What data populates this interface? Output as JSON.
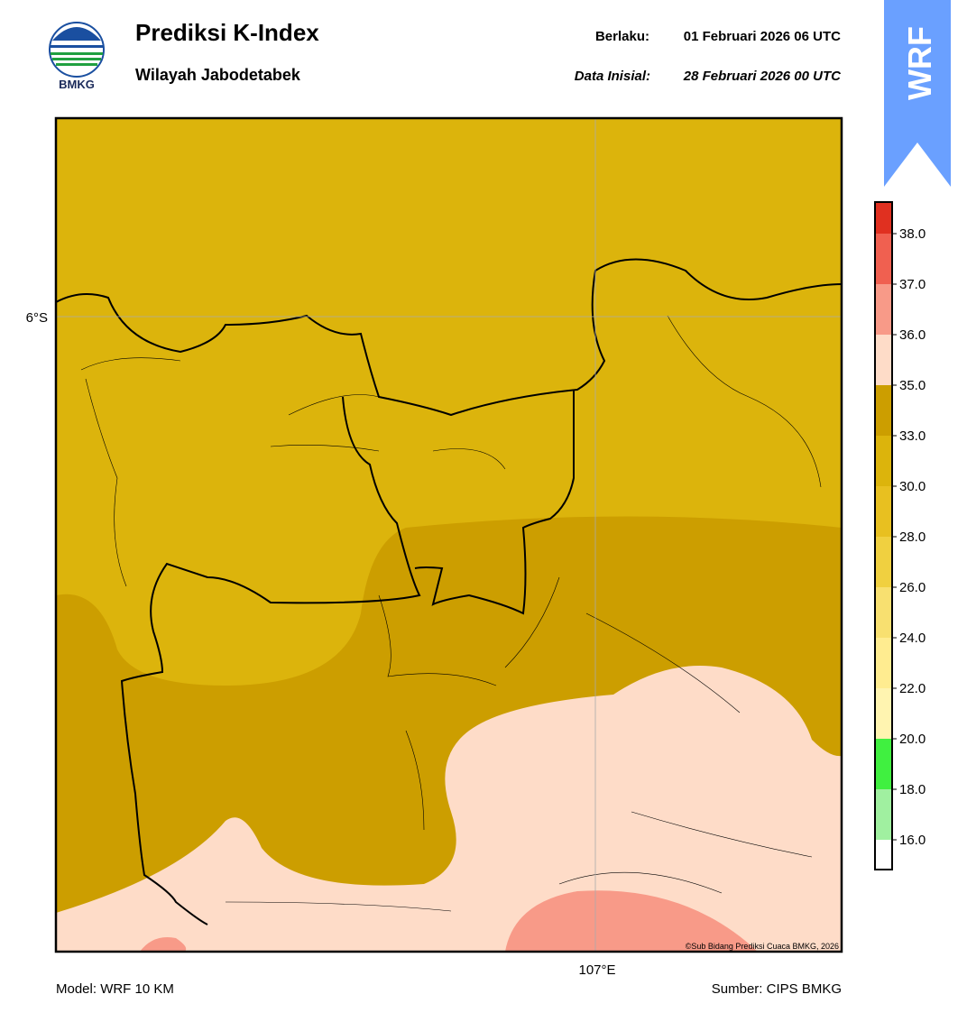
{
  "header": {
    "logo_text": "BMKG",
    "title": "Prediksi K-Index",
    "subtitle": "Wilayah Jabodetabek",
    "valid_label": "Berlaku:",
    "valid_time": "01 Februari 2026 06 UTC",
    "init_label": "Data Inisial:",
    "init_time": "28 Februari 2026 00 UTC",
    "badge": "WRF"
  },
  "map": {
    "lat_label": "6°S",
    "lon_label": "107°E",
    "copyright": "©Sub Bidang Prediksi Cuaca BMKG, 2026"
  },
  "colorbar": {
    "ticks": [
      {
        "value": 16,
        "label": "16.0"
      },
      {
        "value": 18,
        "label": "18.0"
      },
      {
        "value": 20,
        "label": "20.0"
      },
      {
        "value": 22,
        "label": "22.0"
      },
      {
        "value": 24,
        "label": "24.0"
      },
      {
        "value": 26,
        "label": "26.0"
      },
      {
        "value": 28,
        "label": "28.0"
      },
      {
        "value": 30,
        "label": "30.0"
      },
      {
        "value": 33,
        "label": "33.0"
      },
      {
        "value": 35,
        "label": "35.0"
      },
      {
        "value": 36,
        "label": "36.0"
      },
      {
        "value": 37,
        "label": "37.0"
      },
      {
        "value": 38,
        "label": "38.0"
      }
    ],
    "colors": [
      "#ffffff",
      "#a0f0a0",
      "#40f040",
      "#fff4b0",
      "#ffec90",
      "#f8e070",
      "#f0d040",
      "#e8c020",
      "#dcb40c",
      "#cc9e00",
      "#fedcc8",
      "#f89a88",
      "#f06050",
      "#e03020"
    ]
  },
  "footer": {
    "model": "Model: WRF 10 KM",
    "source": "Sumber: CIPS BMKG"
  }
}
